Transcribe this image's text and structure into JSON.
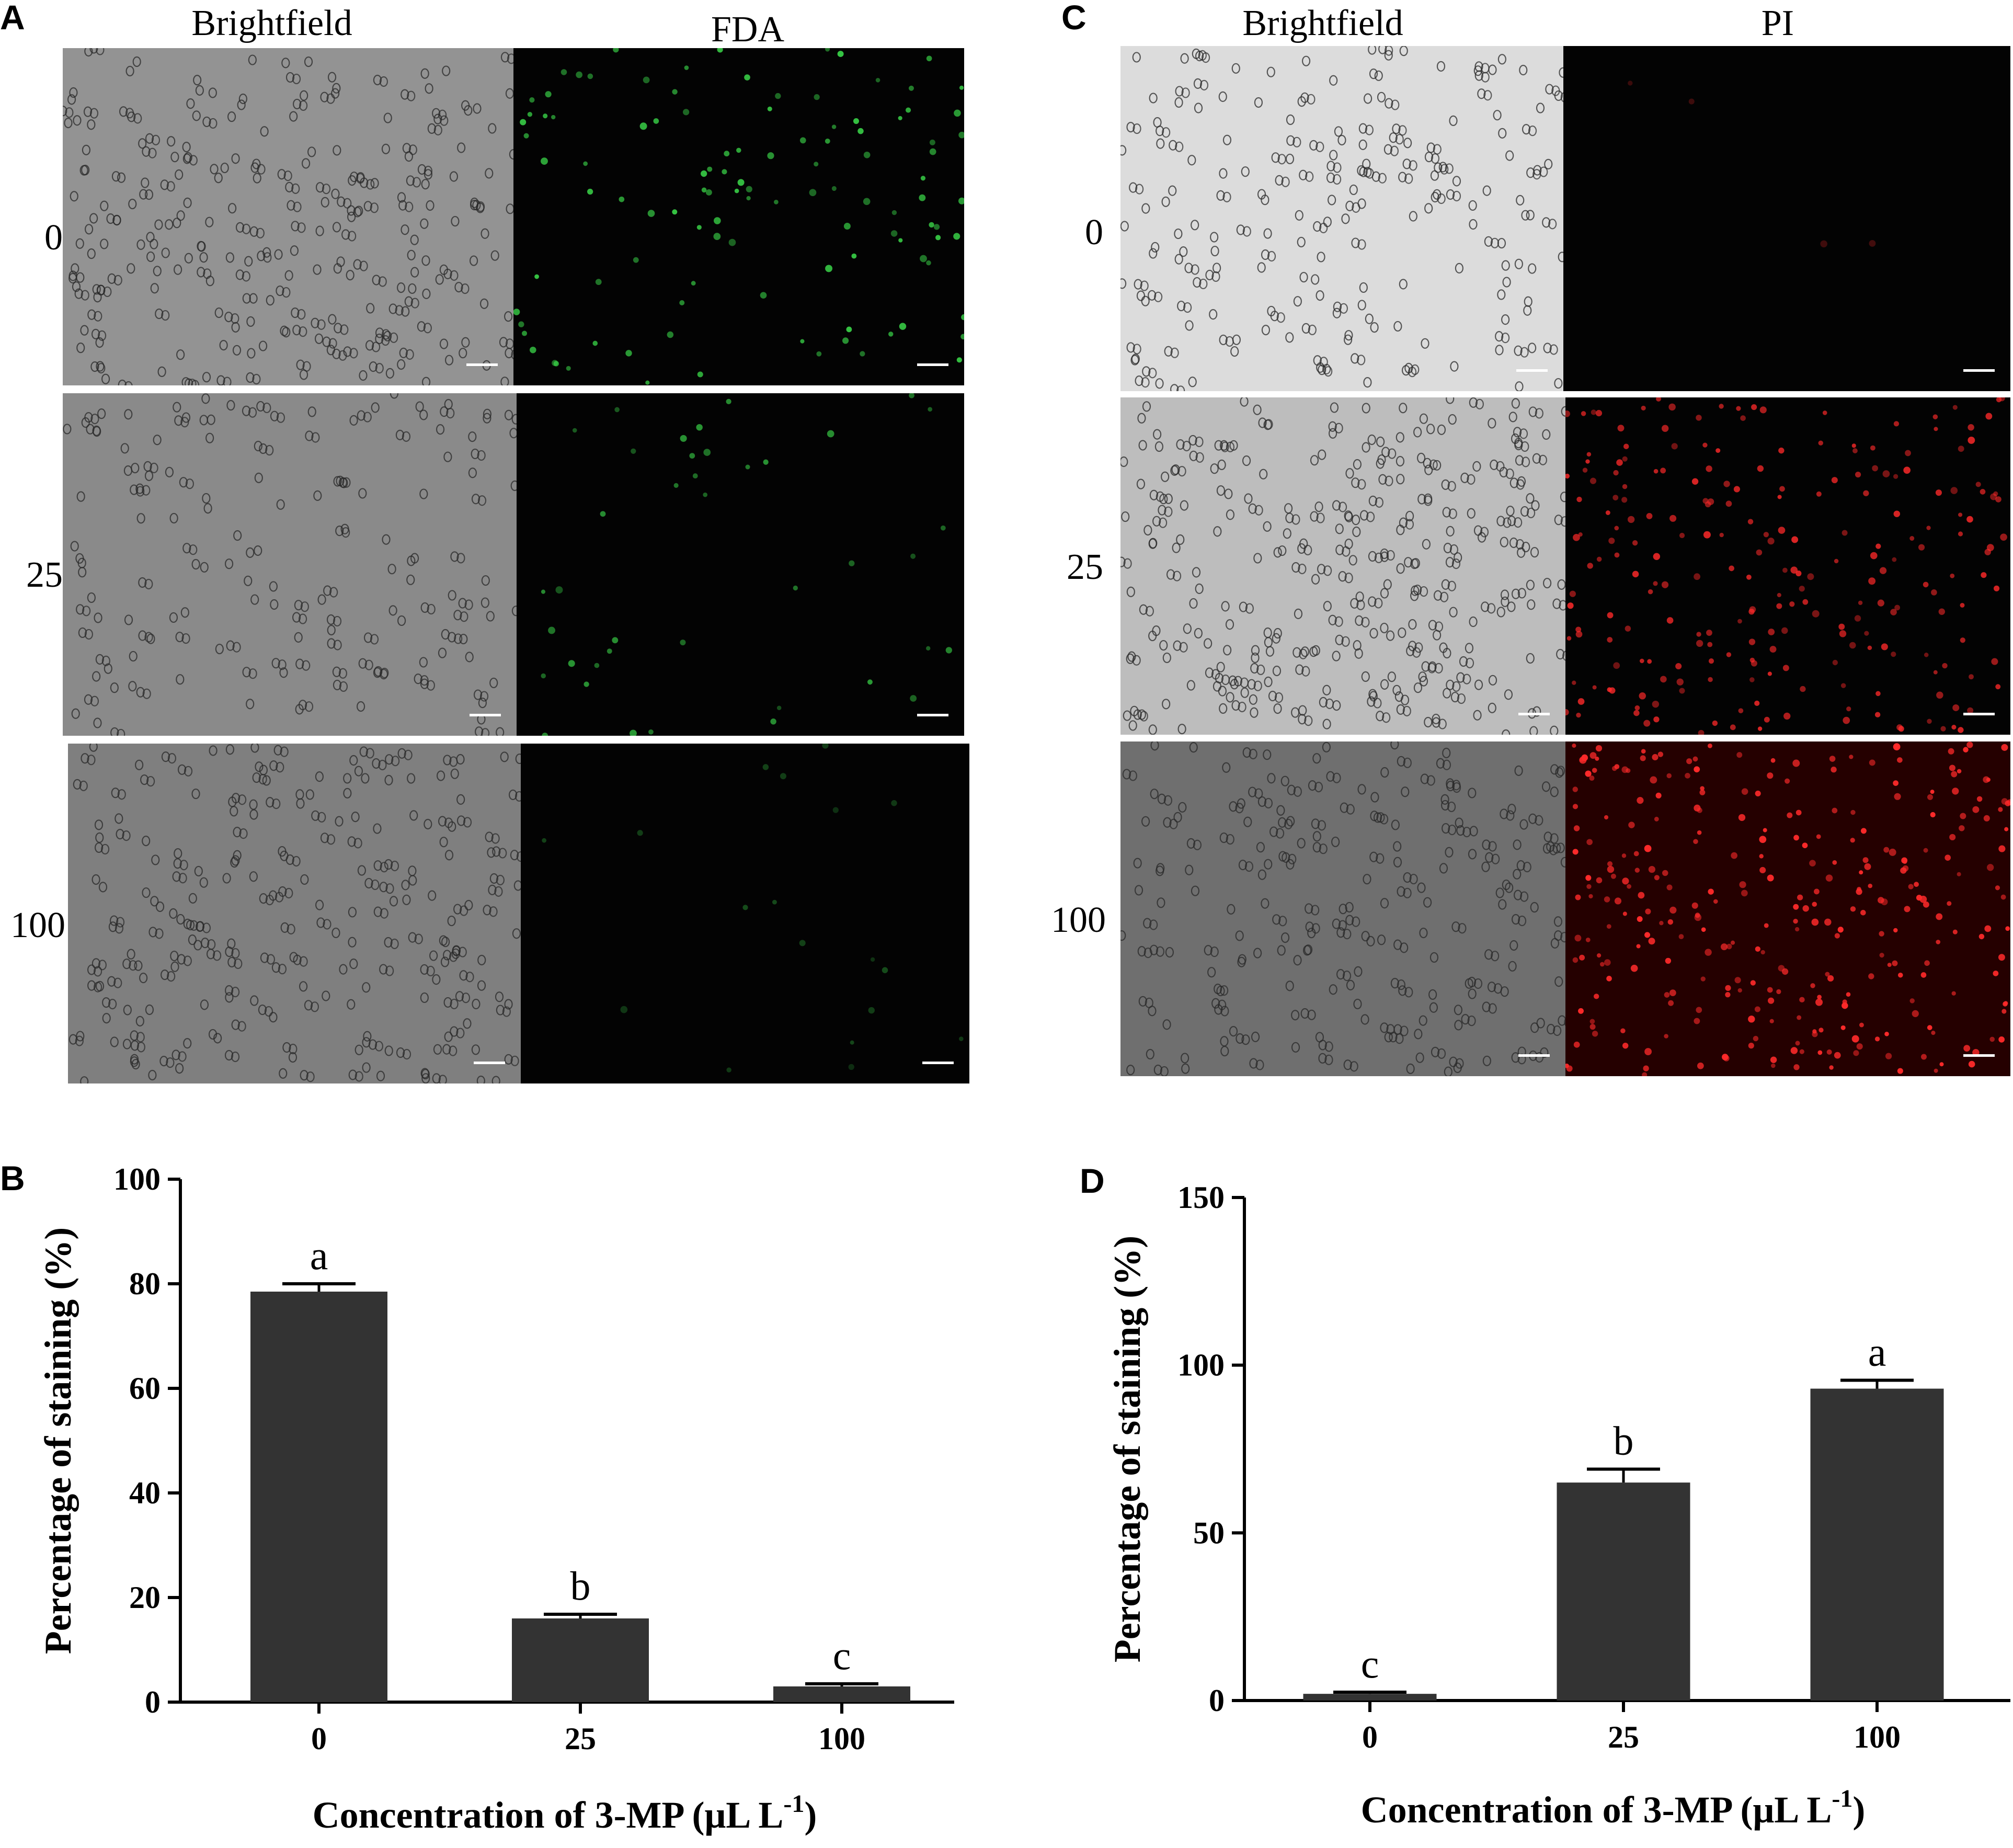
{
  "panels": {
    "A": {
      "letter": "A",
      "columns": [
        "Brightfield",
        "FDA"
      ],
      "rows": [
        "0",
        "25",
        "100"
      ],
      "fluor_color": "#3bd94a",
      "bright_shades": [
        "#939393",
        "#8a8a8a",
        "#7f7f7f"
      ]
    },
    "C": {
      "letter": "C",
      "columns": [
        "Brightfield",
        "PI"
      ],
      "rows": [
        "0",
        "25",
        "100"
      ],
      "fluor_color": "#ff2a2a",
      "bright_shades": [
        "#dcdcdc",
        "#bdbdbd",
        "#6f6f6f"
      ]
    }
  },
  "chart_data": [
    {
      "letter": "B",
      "type": "bar",
      "categories": [
        "0",
        "25",
        "100"
      ],
      "values": [
        78.5,
        16,
        3
      ],
      "errors": [
        1.5,
        0.8,
        0.5
      ],
      "significance": [
        "a",
        "b",
        "c"
      ],
      "ylim": [
        0,
        100
      ],
      "yticks": [
        0,
        20,
        40,
        60,
        80,
        100
      ],
      "ylabel": "Percentage of staining (%)",
      "xlabel": "Concentration of 3-MP (μL L",
      "xlabel_sup": "-1",
      "xlabel_end": ")",
      "bar_color": "#333333"
    },
    {
      "letter": "D",
      "type": "bar",
      "categories": [
        "0",
        "25",
        "100"
      ],
      "values": [
        2,
        65,
        93
      ],
      "errors": [
        0.5,
        4,
        2.5
      ],
      "significance": [
        "c",
        "b",
        "a"
      ],
      "ylim": [
        0,
        150
      ],
      "yticks": [
        0,
        50,
        100,
        150
      ],
      "ylabel": "Percentage of staining (%)",
      "xlabel": "Concentration of 3-MP (μL L",
      "xlabel_sup": "-1",
      "xlabel_end": ")",
      "bar_color": "#333333"
    }
  ]
}
